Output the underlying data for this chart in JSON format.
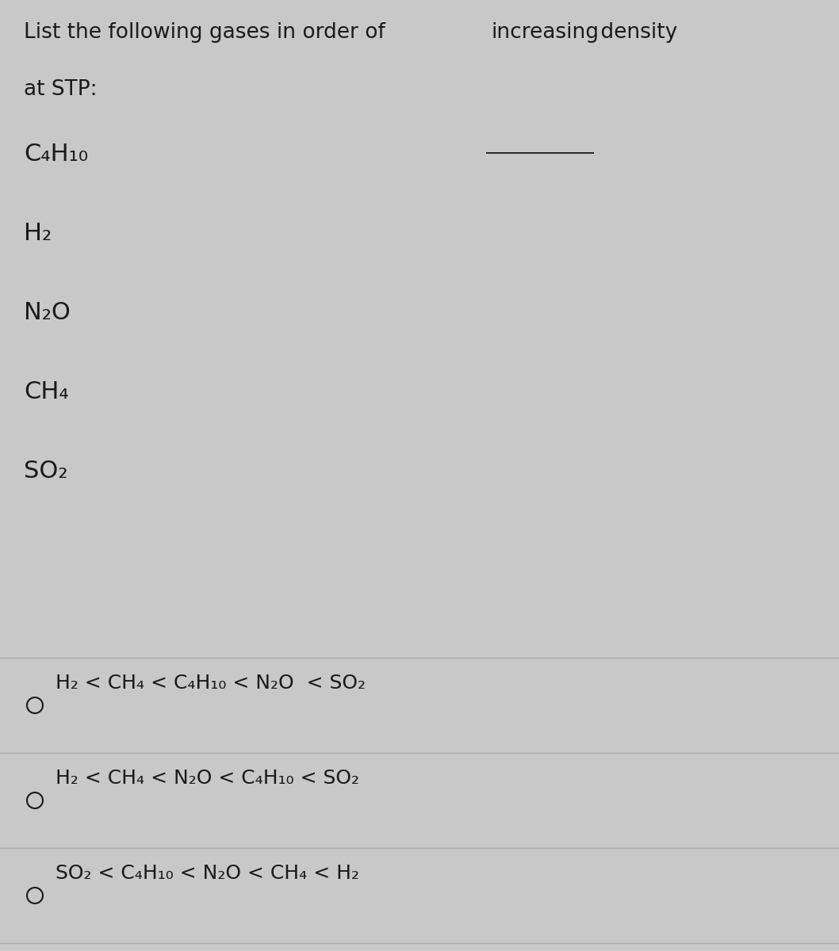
{
  "background_color": "#c8c8c8",
  "divider_color": "#aaaaaa",
  "text_color": "#1a1a1a",
  "title_seg1": "List the following gases in order of ",
  "title_seg2": "increasing",
  "title_seg3": " density",
  "title_line2": "at STP:",
  "gases": [
    "C₄H₁₀",
    "H₂",
    "N₂O",
    "CH₄",
    "SO₂"
  ],
  "answer1": "H₂ < CH₄ < C₄H₁₀ < N₂O  < SO₂",
  "answer2": "H₂ < CH₄ < N₂O < C₄H₁₀ < SO₂",
  "answer3": "SO₂ < C₄H₁₀ < N₂O < CH₄ < H₂",
  "fontsize_title": 19,
  "fontsize_gas": 22,
  "fontsize_answer": 18,
  "fig_width": 10.58,
  "fig_height": 12.0,
  "dpi": 100
}
